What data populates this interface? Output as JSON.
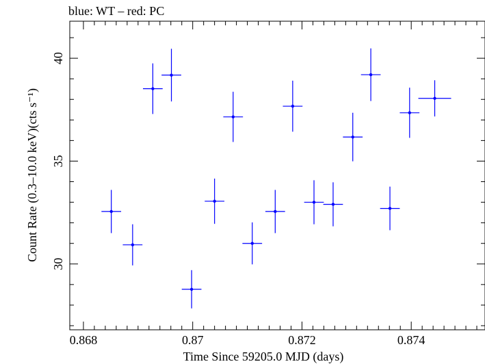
{
  "chart_data": {
    "type": "scatter",
    "title": "blue: WT – red: PC",
    "xlabel": "Time Since 59205.0 MJD (days)",
    "ylabel": "Count Rate (0.3–10.0 keV)(cts s⁻¹)",
    "xlim": [
      0.86775,
      0.87535
    ],
    "ylim": [
      26.8,
      41.8
    ],
    "xticks": [
      {
        "value": 0.868,
        "label": "0.868"
      },
      {
        "value": 0.87,
        "label": "0.87"
      },
      {
        "value": 0.872,
        "label": "0.872"
      },
      {
        "value": 0.874,
        "label": "0.874"
      }
    ],
    "yticks": [
      {
        "value": 30,
        "label": "30"
      },
      {
        "value": 35,
        "label": "35"
      },
      {
        "value": 40,
        "label": "40"
      }
    ],
    "grid": false,
    "series": [
      {
        "color": "#0000ff",
        "points": [
          {
            "x": 0.86851,
            "y": 32.55,
            "xerr": 0.00018,
            "yerr": 1.05
          },
          {
            "x": 0.8689,
            "y": 30.93,
            "xerr": 0.00018,
            "yerr": 1.0
          },
          {
            "x": 0.86927,
            "y": 38.52,
            "xerr": 0.00018,
            "yerr": 1.23
          },
          {
            "x": 0.86961,
            "y": 39.18,
            "xerr": 0.00018,
            "yerr": 1.28
          },
          {
            "x": 0.86998,
            "y": 28.77,
            "xerr": 0.00018,
            "yerr": 0.93
          },
          {
            "x": 0.8704,
            "y": 33.05,
            "xerr": 0.00018,
            "yerr": 1.1
          },
          {
            "x": 0.87074,
            "y": 37.15,
            "xerr": 0.00018,
            "yerr": 1.22
          },
          {
            "x": 0.87109,
            "y": 31.0,
            "xerr": 0.00018,
            "yerr": 1.02
          },
          {
            "x": 0.87151,
            "y": 32.55,
            "xerr": 0.00018,
            "yerr": 1.05
          },
          {
            "x": 0.87183,
            "y": 37.67,
            "xerr": 0.00018,
            "yerr": 1.24
          },
          {
            "x": 0.87222,
            "y": 33.0,
            "xerr": 0.00018,
            "yerr": 1.07
          },
          {
            "x": 0.87257,
            "y": 32.9,
            "xerr": 0.00018,
            "yerr": 1.07
          },
          {
            "x": 0.87293,
            "y": 36.17,
            "xerr": 0.00018,
            "yerr": 1.18
          },
          {
            "x": 0.87326,
            "y": 39.2,
            "xerr": 0.00018,
            "yerr": 1.28
          },
          {
            "x": 0.87361,
            "y": 32.7,
            "xerr": 0.00018,
            "yerr": 1.06
          },
          {
            "x": 0.87397,
            "y": 37.35,
            "xerr": 0.00018,
            "yerr": 1.22
          },
          {
            "x": 0.87443,
            "y": 38.05,
            "xerr": 0.0003,
            "yerr": 0.88
          }
        ]
      }
    ]
  }
}
